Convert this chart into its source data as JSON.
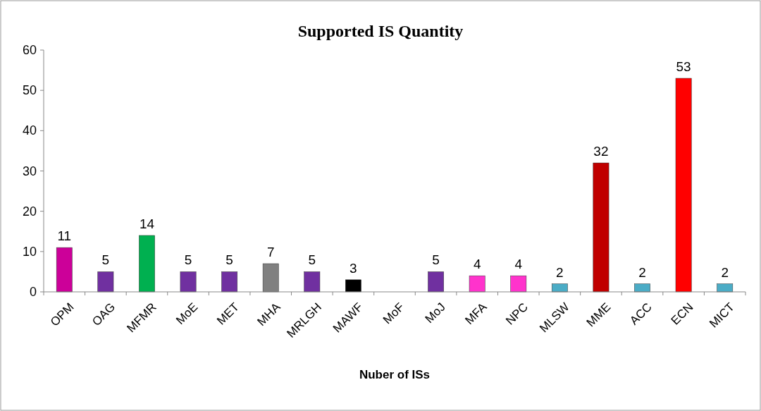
{
  "chart_data": {
    "type": "bar",
    "title": "Supported IS Quantity",
    "xlabel": "Nuber of ISs",
    "categories": [
      "OPM",
      "OAG",
      "MFMR",
      "MoE",
      "MET",
      "MHA",
      "MRLGH",
      "MAWF",
      "MoF",
      "MoJ",
      "MFA",
      "NPC",
      "MLSW",
      "MME",
      "ACC",
      "ECN",
      "MICT"
    ],
    "values": [
      11,
      5,
      14,
      5,
      5,
      7,
      5,
      3,
      null,
      5,
      4,
      4,
      2,
      32,
      2,
      53,
      2
    ],
    "colors": [
      "#cc0099",
      "#7030a0",
      "#00b050",
      "#7030a0",
      "#7030a0",
      "#808080",
      "#7030a0",
      "#000000",
      null,
      "#7030a0",
      "#ff33cc",
      "#ff33cc",
      "#4bacc6",
      "#c00000",
      "#4bacc6",
      "#ff0000",
      "#4bacc6"
    ],
    "ylim": [
      0,
      60
    ],
    "yticks": [
      0,
      10,
      20,
      30,
      40,
      50,
      60
    ],
    "grid": false,
    "data_labels": true
  }
}
